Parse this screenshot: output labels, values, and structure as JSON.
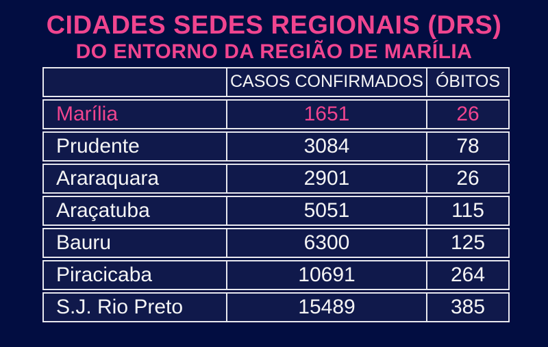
{
  "title": {
    "line1": "CIDADES SEDES REGIONAIS (DRS)",
    "line2": "DO ENTORNO DA REGIÃO DE MARÍLIA"
  },
  "chart_data": {
    "type": "table",
    "title": "CIDADES SEDES REGIONAIS (DRS) DO ENTORNO DA REGIÃO DE MARÍLIA",
    "columns": [
      "",
      "CASOS CONFIRMADOS",
      "ÓBITOS"
    ],
    "rows": [
      {
        "city": "Marília",
        "casos_confirmados": 1651,
        "obitos": 26,
        "highlighted": true
      },
      {
        "city": "Prudente",
        "casos_confirmados": 3084,
        "obitos": 78,
        "highlighted": false
      },
      {
        "city": "Araraquara",
        "casos_confirmados": 2901,
        "obitos": 26,
        "highlighted": false
      },
      {
        "city": "Araçatuba",
        "casos_confirmados": 5051,
        "obitos": 115,
        "highlighted": false
      },
      {
        "city": "Bauru",
        "casos_confirmados": 6300,
        "obitos": 125,
        "highlighted": false
      },
      {
        "city": "Piracicaba",
        "casos_confirmados": 10691,
        "obitos": 264,
        "highlighted": false
      },
      {
        "city": "S.J. Rio Preto",
        "casos_confirmados": 15489,
        "obitos": 385,
        "highlighted": false
      }
    ],
    "legend": "none",
    "grid": "table-borders"
  },
  "colors": {
    "background": "#020d41",
    "cell_background": "#10194b",
    "accent_pink": "#f0458f",
    "text_white": "#f5f5f5",
    "border_white": "#e9e9ef"
  }
}
